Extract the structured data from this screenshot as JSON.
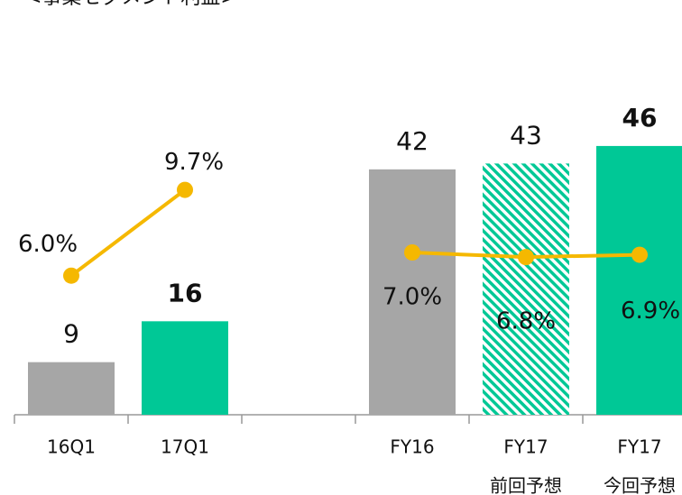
{
  "chart_data": {
    "type": "bar-line",
    "title": "<事業セグメント利益>",
    "categories": [
      [
        "16Q1"
      ],
      [
        "17Q1"
      ],
      null,
      [
        "FY16"
      ],
      [
        "FY17",
        "前回予想"
      ],
      [
        "FY17",
        "今回予想"
      ]
    ],
    "ylim": [
      0,
      50
    ],
    "y2lim": [
      0,
      12.6
    ],
    "series": [
      {
        "type": "bar",
        "values": [
          9,
          16,
          null,
          42,
          43,
          46
        ],
        "colors": [
          "#a6a6a6",
          "#00c896",
          null,
          "#a6a6a6",
          "#00c896",
          "#00c896"
        ],
        "hatched": [
          false,
          false,
          false,
          false,
          true,
          false
        ],
        "bold": [
          false,
          true,
          false,
          false,
          false,
          true
        ]
      },
      {
        "type": "line",
        "axis": "y2",
        "color": "#f5b800",
        "values": [
          6.0,
          9.7,
          null,
          7.0,
          6.8,
          6.9
        ],
        "value_labels": [
          "6.0%",
          "9.7%",
          null,
          "7.0%",
          "6.8%",
          "6.9%"
        ]
      }
    ]
  }
}
